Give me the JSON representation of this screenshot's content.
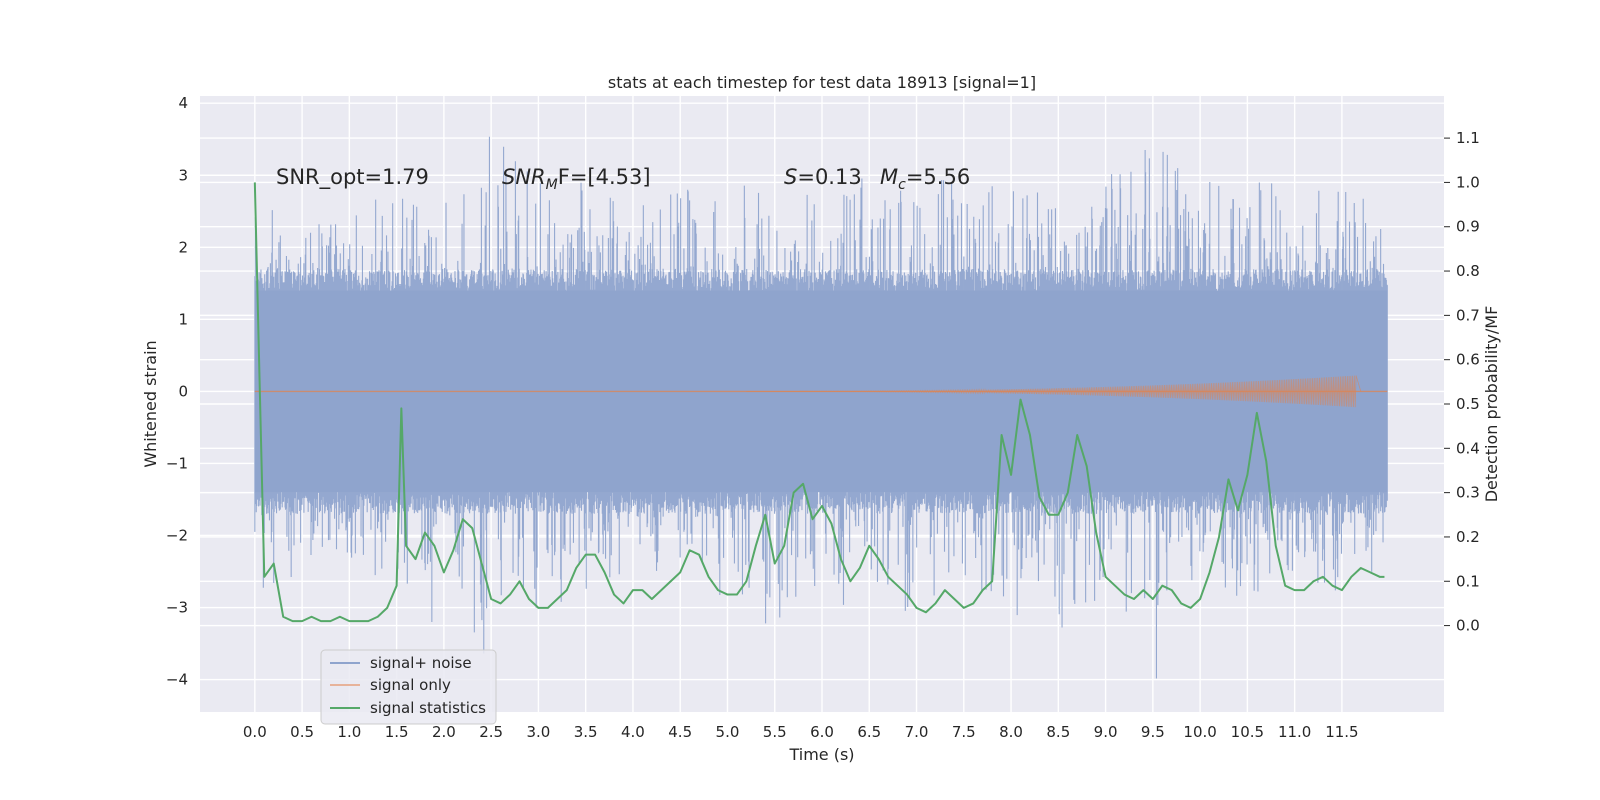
{
  "chart_data": {
    "type": "line",
    "title": "stats at each timestep for test data 18913 [signal=1]",
    "xlabel": "Time (s)",
    "ylabel": "Whitened strain",
    "y2label": "Detection probability/MF",
    "xlim": [
      -0.58,
      12.58
    ],
    "ylim": [
      -4.45,
      4.1
    ],
    "y2lim": [
      -0.195,
      1.195
    ],
    "xticks": [
      "0.0",
      "0.5",
      "1.0",
      "1.5",
      "2.0",
      "2.5",
      "3.0",
      "3.5",
      "4.0",
      "4.5",
      "5.0",
      "5.5",
      "6.0",
      "6.5",
      "7.0",
      "7.5",
      "8.0",
      "8.5",
      "9.0",
      "9.5",
      "10.0",
      "10.5",
      "11.0",
      "11.5"
    ],
    "yticks": [
      "4",
      "3",
      "2",
      "1",
      "0",
      "−1",
      "−2",
      "−3",
      "−4"
    ],
    "y2ticks": [
      "1.1",
      "1.0",
      "0.9",
      "0.8",
      "0.7",
      "0.6",
      "0.5",
      "0.4",
      "0.3",
      "0.2",
      "0.1",
      "0.0"
    ],
    "grid": true,
    "legend_position": "lower-left",
    "annotations": {
      "snr_opt": "SNR_opt=1.79",
      "snr_mf_var": "SNR",
      "snr_mf_sub": "M",
      "snr_mf_rest": "F=[4.53]",
      "s_var": "S",
      "s_rest": "=0.13",
      "mc_var": "M",
      "mc_sub": "c",
      "mc_rest": "=5.56"
    },
    "series": [
      {
        "name": "signal+ noise",
        "axis": "left",
        "color": "#8fa4cd",
        "envelope": {
          "x": [
            0,
            0.5,
            1.0,
            1.5,
            2.0,
            2.5,
            3.0,
            3.5,
            4.0,
            4.5,
            5.0,
            5.5,
            6.0,
            6.5,
            7.0,
            7.5,
            8.0,
            8.5,
            9.0,
            9.5,
            10.0,
            10.5,
            11.0,
            11.5,
            11.98
          ],
          "upper": [
            2.6,
            2.4,
            2.5,
            2.8,
            2.6,
            3.6,
            2.9,
            2.9,
            2.9,
            3.0,
            3.1,
            2.9,
            2.8,
            3.0,
            2.7,
            3.2,
            2.8,
            3.0,
            3.1,
            3.5,
            2.9,
            3.1,
            2.8,
            3.0,
            2.4
          ],
          "lower": [
            -3.2,
            -2.4,
            -2.6,
            -2.8,
            -3.5,
            -3.7,
            -3.0,
            -2.9,
            -2.5,
            -2.6,
            -3.0,
            -3.4,
            -3.0,
            -3.0,
            -3.3,
            -2.6,
            -3.1,
            -3.4,
            -3.6,
            -4.1,
            -2.7,
            -2.9,
            -2.6,
            -2.8,
            -2.5
          ]
        }
      },
      {
        "name": "signal only",
        "axis": "left",
        "color": "#dd8452",
        "chirp": {
          "t_start": 5.2,
          "t_peak": 11.65,
          "peak_amplitude": 0.22
        }
      },
      {
        "name": "signal statistics",
        "axis": "right",
        "color": "#55a868",
        "x": [
          0.0,
          0.1,
          0.2,
          0.3,
          0.4,
          0.5,
          0.6,
          0.7,
          0.8,
          0.9,
          1.0,
          1.1,
          1.2,
          1.3,
          1.4,
          1.5,
          1.55,
          1.6,
          1.7,
          1.8,
          1.9,
          2.0,
          2.1,
          2.2,
          2.3,
          2.4,
          2.5,
          2.6,
          2.7,
          2.8,
          2.9,
          3.0,
          3.1,
          3.2,
          3.3,
          3.4,
          3.5,
          3.6,
          3.7,
          3.8,
          3.9,
          4.0,
          4.1,
          4.2,
          4.3,
          4.4,
          4.5,
          4.6,
          4.7,
          4.8,
          4.9,
          5.0,
          5.1,
          5.2,
          5.3,
          5.4,
          5.5,
          5.6,
          5.7,
          5.8,
          5.9,
          6.0,
          6.1,
          6.2,
          6.3,
          6.4,
          6.5,
          6.6,
          6.7,
          6.8,
          6.9,
          7.0,
          7.1,
          7.2,
          7.3,
          7.4,
          7.5,
          7.6,
          7.7,
          7.8,
          7.9,
          8.0,
          8.1,
          8.2,
          8.3,
          8.4,
          8.5,
          8.6,
          8.7,
          8.8,
          8.9,
          9.0,
          9.1,
          9.2,
          9.3,
          9.4,
          9.5,
          9.6,
          9.7,
          9.8,
          9.9,
          10.0,
          10.1,
          10.2,
          10.3,
          10.4,
          10.5,
          10.6,
          10.7,
          10.8,
          10.9,
          11.0,
          11.1,
          11.2,
          11.3,
          11.4,
          11.5,
          11.6,
          11.7,
          11.8,
          11.9,
          11.95
        ],
        "y": [
          1.0,
          0.11,
          0.14,
          0.02,
          0.01,
          0.01,
          0.02,
          0.01,
          0.01,
          0.02,
          0.01,
          0.01,
          0.01,
          0.02,
          0.04,
          0.09,
          0.49,
          0.18,
          0.15,
          0.21,
          0.18,
          0.12,
          0.17,
          0.24,
          0.22,
          0.14,
          0.06,
          0.05,
          0.07,
          0.1,
          0.06,
          0.04,
          0.04,
          0.06,
          0.08,
          0.13,
          0.16,
          0.16,
          0.12,
          0.07,
          0.05,
          0.08,
          0.08,
          0.06,
          0.08,
          0.1,
          0.12,
          0.17,
          0.16,
          0.11,
          0.08,
          0.07,
          0.07,
          0.1,
          0.18,
          0.25,
          0.14,
          0.18,
          0.3,
          0.32,
          0.24,
          0.27,
          0.23,
          0.15,
          0.1,
          0.13,
          0.18,
          0.15,
          0.11,
          0.09,
          0.07,
          0.04,
          0.03,
          0.05,
          0.08,
          0.06,
          0.04,
          0.05,
          0.08,
          0.1,
          0.43,
          0.34,
          0.51,
          0.43,
          0.29,
          0.25,
          0.25,
          0.3,
          0.43,
          0.36,
          0.21,
          0.11,
          0.09,
          0.07,
          0.06,
          0.08,
          0.06,
          0.09,
          0.08,
          0.05,
          0.04,
          0.06,
          0.12,
          0.2,
          0.33,
          0.26,
          0.34,
          0.48,
          0.37,
          0.18,
          0.09,
          0.08,
          0.08,
          0.1,
          0.11,
          0.09,
          0.08,
          0.11,
          0.13,
          0.12,
          0.11,
          0.11
        ],
        "y_display_correction_note": ""
      }
    ]
  }
}
